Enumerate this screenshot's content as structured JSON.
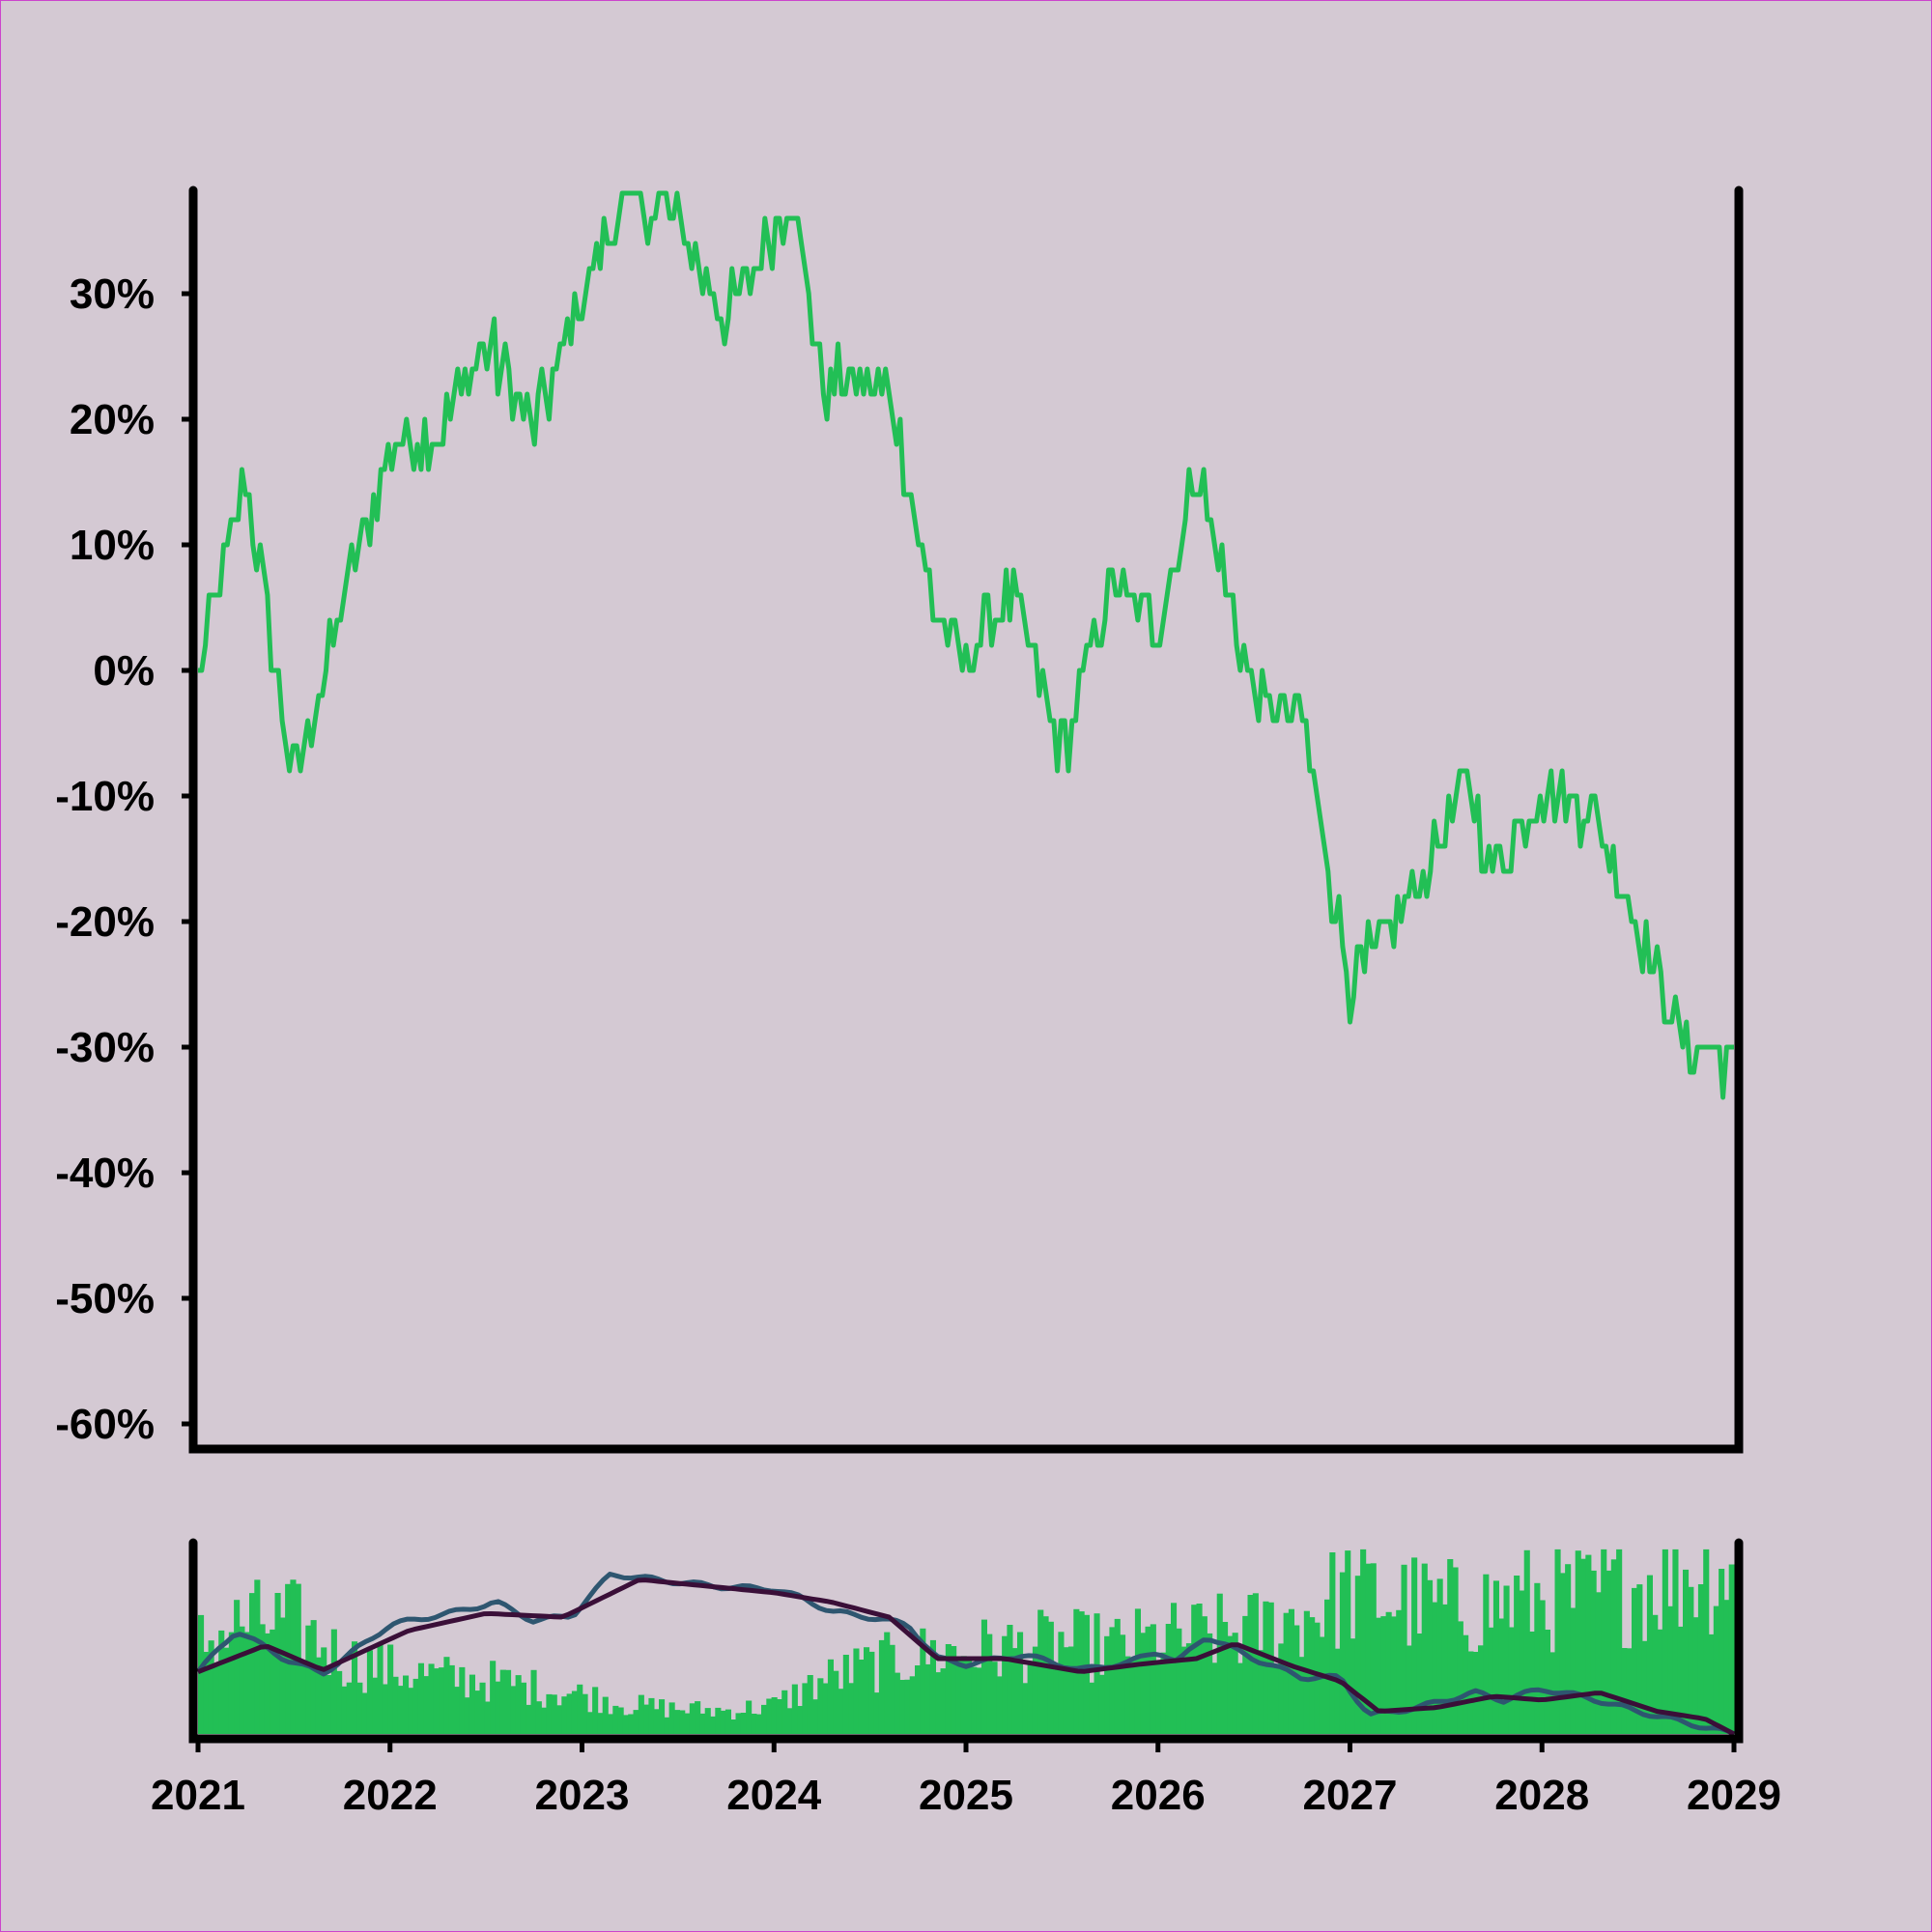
{
  "colors": {
    "background": "#d4c9d3",
    "price_line": "#22bf55",
    "volume_bars": "#22bf55",
    "ma_short": "#2e5670",
    "ma_long": "#3a0f38",
    "axes": "#000000"
  },
  "chart_data": [
    {
      "type": "line",
      "panel": "main",
      "ylim": [
        -0.62,
        0.38
      ],
      "xlim": [
        2021,
        2029
      ],
      "yticks": [
        -0.6,
        -0.5,
        -0.4,
        -0.3,
        -0.2,
        -0.1,
        0,
        0.1,
        0.2,
        0.3
      ],
      "ytick_labels": [
        "-60%",
        "-50%",
        "-40%",
        "-30%",
        "-20%",
        "-10%",
        "0%",
        "10%",
        "20%",
        "30%"
      ],
      "grid": false,
      "series": [
        {
          "x": [
            2021.0,
            2021.25,
            2021.5,
            2021.75,
            2022.0,
            2022.25,
            2022.5,
            2022.75,
            2023.0,
            2023.2,
            2023.5,
            2023.75,
            2024.1,
            2024.25,
            2024.6,
            2024.85,
            2025.0,
            2025.25,
            2025.5,
            2025.75,
            2026.0,
            2026.2,
            2026.5,
            2026.75,
            2027.0,
            2027.25,
            2027.6,
            2027.75,
            2028.0,
            2028.25,
            2028.5,
            2028.75,
            2029.0
          ],
          "y": [
            0.0,
            0.15,
            -0.09,
            0.05,
            0.18,
            0.19,
            0.26,
            0.19,
            0.3,
            0.37,
            0.36,
            0.28,
            0.38,
            0.23,
            0.22,
            0.04,
            0.01,
            0.06,
            -0.07,
            0.07,
            0.03,
            0.16,
            -0.02,
            -0.04,
            -0.25,
            -0.2,
            -0.09,
            -0.16,
            -0.09,
            -0.11,
            -0.2,
            -0.3,
            -0.31
          ]
        }
      ]
    },
    {
      "type": "bar",
      "panel": "volume",
      "xlim": [
        2021,
        2029
      ],
      "xticks": [
        2021,
        2022,
        2023,
        2024,
        2025,
        2026,
        2027,
        2028,
        2029
      ],
      "xtick_labels": [
        "2021",
        "2022",
        "2023",
        "2024",
        "2025",
        "2026",
        "2027",
        "2028",
        "2029"
      ],
      "volume_x": [
        2021.0,
        2021.25,
        2021.5,
        2021.75,
        2022.0,
        2022.25,
        2022.5,
        2022.75,
        2023.0,
        2023.25,
        2023.5,
        2023.75,
        2024.0,
        2024.25,
        2024.5,
        2024.75,
        2025.0,
        2025.25,
        2025.5,
        2025.75,
        2026.0,
        2026.25,
        2026.5,
        2026.75,
        2027.0,
        2027.25,
        2027.5,
        2027.75,
        2028.0,
        2028.25,
        2028.5,
        2028.75,
        2029.0
      ],
      "volume_level": [
        0.5,
        0.62,
        0.62,
        0.42,
        0.36,
        0.32,
        0.3,
        0.26,
        0.22,
        0.16,
        0.14,
        0.13,
        0.16,
        0.3,
        0.38,
        0.44,
        0.46,
        0.48,
        0.5,
        0.48,
        0.52,
        0.55,
        0.58,
        0.66,
        0.8,
        0.74,
        0.7,
        0.72,
        0.76,
        0.76,
        0.84,
        0.9,
        0.95
      ],
      "series": [
        {
          "role": "ma_short",
          "x": [
            2021.0,
            2021.2,
            2021.45,
            2021.65,
            2022.0,
            2022.35,
            2022.55,
            2022.75,
            2022.95,
            2023.15,
            2023.3,
            2023.55,
            2023.75,
            2024.0,
            2024.15,
            2024.3,
            2024.5,
            2024.7,
            2024.85,
            2025.0,
            2025.3,
            2025.6,
            2025.85,
            2026.0,
            2026.1,
            2026.25,
            2026.5,
            2026.75,
            2026.95,
            2027.1,
            2027.35,
            2027.65,
            2027.8,
            2028.0,
            2028.25,
            2028.5,
            2028.75,
            2029.0
          ],
          "y": [
            0.33,
            0.55,
            0.4,
            0.32,
            0.58,
            0.65,
            0.7,
            0.6,
            0.63,
            0.85,
            0.83,
            0.8,
            0.78,
            0.77,
            0.72,
            0.65,
            0.62,
            0.58,
            0.4,
            0.37,
            0.42,
            0.34,
            0.38,
            0.44,
            0.38,
            0.52,
            0.4,
            0.3,
            0.3,
            0.1,
            0.14,
            0.22,
            0.18,
            0.24,
            0.19,
            0.12,
            0.06,
            0.0
          ]
        },
        {
          "role": "ma_long",
          "x": [
            2021.0,
            2021.35,
            2021.65,
            2022.1,
            2022.5,
            2022.9,
            2023.3,
            2023.7,
            2024.0,
            2024.3,
            2024.6,
            2024.85,
            2025.2,
            2025.6,
            2025.9,
            2026.2,
            2026.4,
            2026.7,
            2026.95,
            2027.15,
            2027.45,
            2027.75,
            2028.0,
            2028.3,
            2028.6,
            2028.85,
            2029.0
          ],
          "y": [
            0.33,
            0.47,
            0.34,
            0.55,
            0.64,
            0.62,
            0.82,
            0.78,
            0.75,
            0.7,
            0.62,
            0.4,
            0.4,
            0.33,
            0.37,
            0.4,
            0.48,
            0.36,
            0.28,
            0.12,
            0.14,
            0.2,
            0.18,
            0.22,
            0.12,
            0.08,
            0.0
          ]
        }
      ]
    }
  ]
}
